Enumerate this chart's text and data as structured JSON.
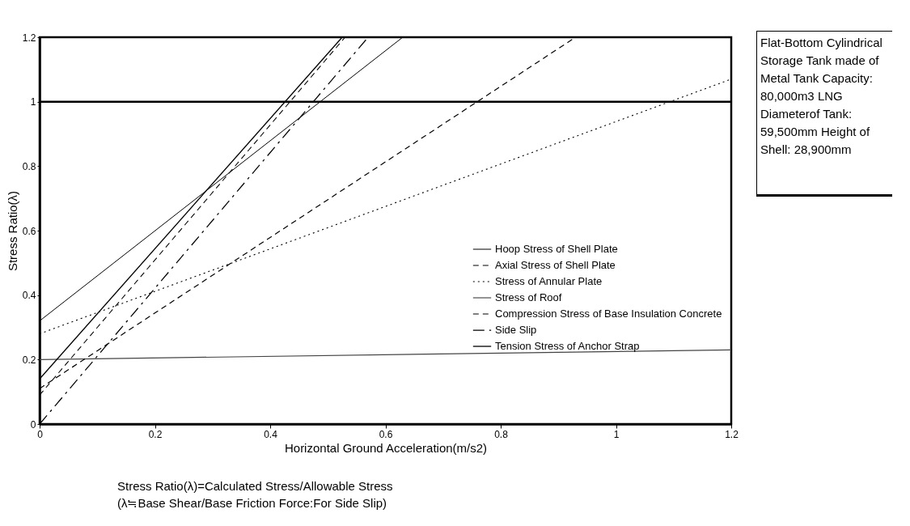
{
  "chart_data": {
    "type": "line",
    "xlabel": "Horizontal Ground Acceleration(m/s2)",
    "ylabel": "Stress Ratio(λ)",
    "xlim": [
      0,
      1.2
    ],
    "xticks": [
      0,
      0.2,
      0.4,
      0.6,
      0.8,
      1,
      1.2
    ],
    "ylim": [
      0,
      1.2
    ],
    "yticks": [
      0,
      0.2,
      0.4,
      0.6,
      0.8,
      1,
      1.2
    ],
    "grid": false,
    "legend": "right",
    "marker": "none",
    "series": [
      {
        "name": "Hoop Stress of Shell Plate",
        "color": "#000000",
        "line_style": "solid",
        "x": [
          0,
          0.63
        ],
        "values": [
          0.32,
          1.2
        ]
      },
      {
        "name": "Axial Stress of Shell Plate",
        "color": "#000000",
        "line_style": "dashed",
        "x": [
          0,
          0.53
        ],
        "values": [
          0.09,
          1.2
        ]
      },
      {
        "name": "Stress of Annular Plate",
        "color": "#000000",
        "line_style": "dotted",
        "x": [
          0,
          1.2
        ],
        "values": [
          0.28,
          1.07
        ]
      },
      {
        "name": "Stress of Roof",
        "color": "#444444",
        "line_style": "solid",
        "x": [
          0,
          1.2
        ],
        "values": [
          0.2,
          0.23
        ]
      },
      {
        "name": "Compression Stress of Base Insulation Concrete",
        "color": "#000000",
        "line_style": "dashed",
        "x": [
          0,
          0.93
        ],
        "values": [
          0.11,
          1.2
        ]
      },
      {
        "name": "Side Slip",
        "color": "#000000",
        "line_style": "dashdot",
        "x": [
          0,
          0.57
        ],
        "values": [
          0,
          1.2
        ]
      },
      {
        "name": "Tension Stress of Anchor Strap",
        "color": "#000000",
        "line_style": "solid",
        "x": [
          0,
          0.525
        ],
        "values": [
          0.14,
          1.2
        ]
      }
    ],
    "ref_lines": [
      {
        "axis": "y",
        "value": 1,
        "color": "#000000"
      }
    ],
    "annotations": [
      "Flat-Bottom Cylindrical Storage Tank made of Metal Tank Capacity: 80,000m3 LNG Diameterof Tank: 59,500mm Height of Shell: 28,900mm",
      "Stress Ratio(λ)=Calculated Stress/Allowable Stress",
      "(λ≒Base Shear/Base Friction Force:For Side Slip)"
    ]
  }
}
